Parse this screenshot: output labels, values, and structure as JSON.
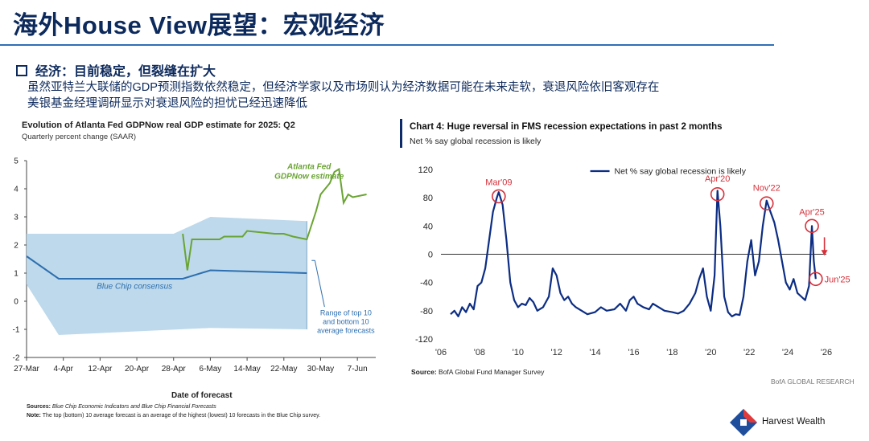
{
  "page": {
    "title": "海外House View展望：宏观经济",
    "section_heading": "经济：目前稳定，但裂缝在扩大",
    "body_lines": [
      "虽然亚特兰大联储的GDP预测指数依然稳定，但经济学家以及市场则认为经济数据可能在未来走软，衰退风险依旧客观存在",
      "美银基金经理调研显示对衰退风险的担忧已经迅速降低"
    ],
    "brand": "Harvest Wealth"
  },
  "chart_data": [
    {
      "type": "line",
      "title": "Evolution of Atlanta Fed GDPNow real GDP estimate for 2025: Q2",
      "subtitle": "Quarterly percent change (SAAR)",
      "xlabel": "Date of forecast",
      "ylabel": "",
      "ylim": [
        -2,
        5
      ],
      "yticks": [
        "-2",
        "-1",
        "0",
        "1",
        "2",
        "3",
        "4",
        "5"
      ],
      "xticks": [
        "27-Mar",
        "4-Apr",
        "12-Apr",
        "20-Apr",
        "28-Apr",
        "6-May",
        "14-May",
        "22-May",
        "30-May",
        "7-Jun"
      ],
      "x_start": "2025-03-27",
      "grid": false,
      "series": [
        {
          "name": "Atlanta Fed GDPNow estimate",
          "color": "#6aa432",
          "points": [
            [
              "2025-04-30",
              2.4
            ],
            [
              "2025-05-01",
              1.1
            ],
            [
              "2025-05-02",
              2.2
            ],
            [
              "2025-05-08",
              2.2
            ],
            [
              "2025-05-09",
              2.3
            ],
            [
              "2025-05-13",
              2.3
            ],
            [
              "2025-05-14",
              2.5
            ],
            [
              "2025-05-20",
              2.4
            ],
            [
              "2025-05-22",
              2.4
            ],
            [
              "2025-05-24",
              2.3
            ],
            [
              "2025-05-27",
              2.2
            ],
            [
              "2025-05-29",
              3.2
            ],
            [
              "2025-05-30",
              3.8
            ],
            [
              "2025-06-01",
              4.2
            ],
            [
              "2025-06-02",
              4.6
            ],
            [
              "2025-06-03",
              4.7
            ],
            [
              "2025-06-04",
              3.5
            ],
            [
              "2025-06-05",
              3.8
            ],
            [
              "2025-06-06",
              3.7
            ],
            [
              "2025-06-09",
              3.8
            ]
          ]
        },
        {
          "name": "Blue Chip consensus",
          "color": "#2e6fb0",
          "points": [
            [
              "2025-03-27",
              1.6
            ],
            [
              "2025-04-03",
              0.8
            ],
            [
              "2025-04-30",
              0.8
            ],
            [
              "2025-05-06",
              1.1
            ],
            [
              "2025-05-27",
              1.0
            ]
          ]
        }
      ],
      "bands": [
        {
          "name": "Range of top 10 and bottom 10 average forecasts",
          "color": "#b9d7ea",
          "upper": [
            [
              "2025-03-27",
              2.4
            ],
            [
              "2025-04-28",
              2.4
            ],
            [
              "2025-05-06",
              3.0
            ],
            [
              "2025-05-27",
              2.85
            ]
          ],
          "lower": [
            [
              "2025-03-27",
              0.6
            ],
            [
              "2025-04-03",
              -1.2
            ],
            [
              "2025-05-06",
              -0.95
            ],
            [
              "2025-05-27",
              -1.0
            ]
          ]
        }
      ],
      "annotations": [
        "Atlanta Fed GDPNow estimate",
        "Blue Chip consensus",
        "Range of top 10 and bottom 10 average forecasts"
      ],
      "sources_label": "Sources:",
      "sources_text": "Blue Chip Economic Indicators and Blue Chip Financial Forecasts",
      "note_label": "Note:",
      "note_text": "The top (bottom) 10 average forecast is an average of the highest (lowest) 10 forecasts in the Blue Chip survey."
    },
    {
      "type": "line",
      "title": "Chart 4: Huge reversal in FMS recession expectations in past 2 months",
      "subtitle": "Net % say global recession is likely",
      "ylim": [
        -120,
        120
      ],
      "yticks": [
        "120",
        "80",
        "40",
        "0",
        "-40",
        "-80",
        "-120"
      ],
      "xlim": [
        2006,
        2026
      ],
      "xticks": [
        "'06",
        "'08",
        "'10",
        "'12",
        "'14",
        "'16",
        "'18",
        "'20",
        "'22",
        "'24",
        "'26"
      ],
      "grid": false,
      "legend": "top",
      "series": [
        {
          "name": "Net % say global recession is likely",
          "color": "#0c2d83",
          "x": [
            2006.5,
            2006.7,
            2006.9,
            2007.1,
            2007.3,
            2007.5,
            2007.7,
            2007.9,
            2008.1,
            2008.3,
            2008.5,
            2008.7,
            2008.9,
            2009.0,
            2009.2,
            2009.4,
            2009.6,
            2009.8,
            2010.0,
            2010.2,
            2010.4,
            2010.6,
            2010.8,
            2011.0,
            2011.3,
            2011.6,
            2011.8,
            2012.0,
            2012.2,
            2012.4,
            2012.6,
            2012.8,
            2013.0,
            2013.3,
            2013.6,
            2014.0,
            2014.3,
            2014.6,
            2015.0,
            2015.3,
            2015.6,
            2015.8,
            2016.0,
            2016.2,
            2016.5,
            2016.8,
            2017.0,
            2017.3,
            2017.6,
            2018.0,
            2018.3,
            2018.6,
            2018.9,
            2019.2,
            2019.4,
            2019.6,
            2019.8,
            2020.0,
            2020.2,
            2020.35,
            2020.5,
            2020.7,
            2020.9,
            2021.1,
            2021.3,
            2021.5,
            2021.7,
            2021.9,
            2022.1,
            2022.3,
            2022.5,
            2022.7,
            2022.9,
            2023.1,
            2023.3,
            2023.5,
            2023.7,
            2023.9,
            2024.1,
            2024.3,
            2024.5,
            2024.7,
            2024.9,
            2025.1,
            2025.25,
            2025.35,
            2025.45
          ],
          "y": [
            -85,
            -80,
            -88,
            -75,
            -82,
            -70,
            -78,
            -45,
            -40,
            -20,
            20,
            60,
            80,
            88,
            70,
            20,
            -40,
            -65,
            -75,
            -70,
            -72,
            -62,
            -68,
            -80,
            -75,
            -60,
            -20,
            -30,
            -55,
            -65,
            -60,
            -70,
            -75,
            -80,
            -85,
            -82,
            -75,
            -80,
            -78,
            -70,
            -80,
            -65,
            -60,
            -70,
            -75,
            -78,
            -70,
            -75,
            -80,
            -82,
            -84,
            -80,
            -70,
            -55,
            -35,
            -20,
            -60,
            -80,
            -30,
            90,
            40,
            -60,
            -82,
            -88,
            -85,
            -86,
            -60,
            -10,
            20,
            -30,
            -10,
            40,
            76,
            60,
            45,
            20,
            -10,
            -40,
            -50,
            -35,
            -55,
            -60,
            -65,
            -45,
            40,
            -10,
            -35
          ]
        }
      ],
      "annotations": [
        "Mar'09",
        "Apr'20",
        "Nov'22",
        "Apr'25",
        "Jun'25"
      ],
      "source_label": "Source:",
      "source_text": "BofA Global Fund Manager Survey",
      "credit": "BofA GLOBAL RESEARCH"
    }
  ]
}
